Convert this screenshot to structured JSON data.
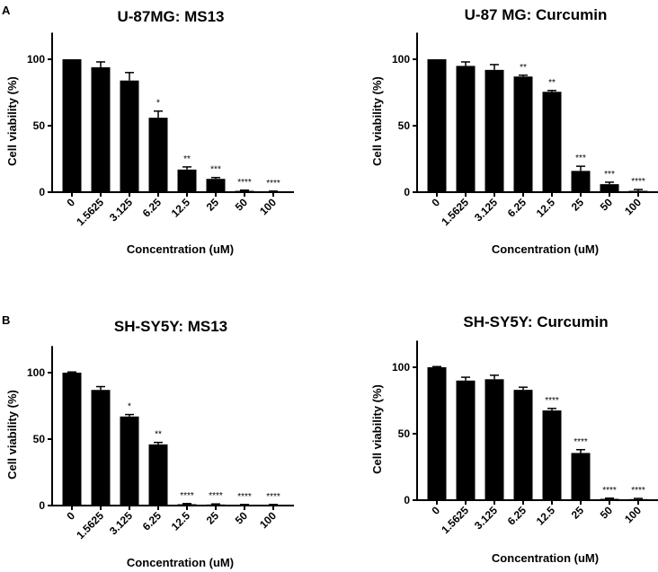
{
  "chart_data": [
    {
      "type": "bar",
      "panel_label": "A",
      "title": "U-87MG: MS13",
      "xlabel": "Concentration (uM)",
      "ylabel": "Cell viability (%)",
      "ylim": [
        0,
        120
      ],
      "yticks": [
        "0",
        "50",
        "100"
      ],
      "categories": [
        "0",
        "1.5625",
        "3.125",
        "6.25",
        "12.5",
        "25",
        "50",
        "100"
      ],
      "values": [
        100,
        94,
        84,
        56,
        17,
        10,
        1,
        0.5
      ],
      "errors": [
        0,
        4,
        6,
        5,
        2,
        1,
        0.5,
        0.3
      ],
      "significance": [
        "",
        "",
        "",
        "*",
        "**",
        "***",
        "****",
        "****"
      ]
    },
    {
      "type": "bar",
      "panel_label": "",
      "title": "U-87 MG: Curcumin",
      "xlabel": "Concentration (uM)",
      "ylabel": "Cell viability (%)",
      "ylim": [
        0,
        120
      ],
      "yticks": [
        "0",
        "50",
        "100"
      ],
      "categories": [
        "0",
        "1.5625",
        "3.125",
        "6.25",
        "12.5",
        "25",
        "50",
        "100"
      ],
      "values": [
        100,
        95,
        92,
        87,
        75.5,
        16,
        6,
        1
      ],
      "errors": [
        0,
        3,
        4,
        1,
        1,
        3.5,
        1.5,
        1
      ],
      "significance": [
        "",
        "",
        "",
        "**",
        "**",
        "***",
        "***",
        "****"
      ]
    },
    {
      "type": "bar",
      "panel_label": "B",
      "title": "SH-SY5Y: MS13",
      "xlabel": "Concentration (uM)",
      "ylabel": "Cell viability (%)",
      "ylim": [
        0,
        120
      ],
      "yticks": [
        "0",
        "50",
        "100"
      ],
      "categories": [
        "0",
        "1.5625",
        "3.125",
        "6.25",
        "12.5",
        "25",
        "50",
        "100"
      ],
      "values": [
        100,
        87,
        67,
        46,
        1,
        0.8,
        0.5,
        0.5
      ],
      "errors": [
        0.5,
        2.5,
        1.5,
        1.5,
        0.5,
        0.4,
        0.3,
        0.3
      ],
      "significance": [
        "",
        "",
        "*",
        "**",
        "****",
        "****",
        "****",
        "****"
      ]
    },
    {
      "type": "bar",
      "panel_label": "",
      "title": "SH-SY5Y: Curcumin",
      "xlabel": "Concentration (uM)",
      "ylabel": "Cell viability (%)",
      "ylim": [
        0,
        120
      ],
      "yticks": [
        "0",
        "50",
        "100"
      ],
      "categories": [
        "0",
        "1.5625",
        "3.125",
        "6.25",
        "12.5",
        "25",
        "50",
        "100"
      ],
      "values": [
        100,
        90,
        91,
        83,
        67.5,
        35.5,
        1,
        0.8
      ],
      "errors": [
        0.5,
        2.5,
        3,
        2,
        1.5,
        2.5,
        0.5,
        0.5
      ],
      "significance": [
        "",
        "",
        "",
        "",
        "****",
        "****",
        "****",
        "****"
      ]
    }
  ]
}
